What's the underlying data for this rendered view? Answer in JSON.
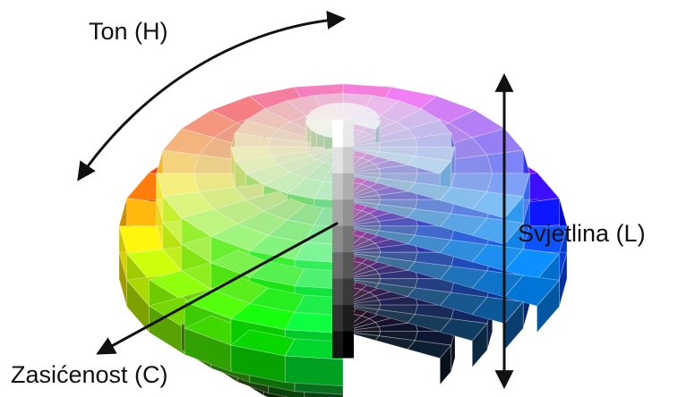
{
  "labels": {
    "hue": "Ton (H)",
    "lightness": "Svjetlina (L)",
    "chroma": "Zasićenost (C)"
  },
  "colors": {
    "text": "#111111",
    "arrow": "#111111",
    "background": "#ffffff"
  },
  "icons": {
    "hue_arrow": "curved-double-arrow",
    "lightness_arrow": "vertical-double-arrow",
    "chroma_arrow": "diagonal-arrow"
  },
  "solid": {
    "lightness_levels": 9,
    "chroma_rings": 6,
    "hue_steps": 24
  }
}
